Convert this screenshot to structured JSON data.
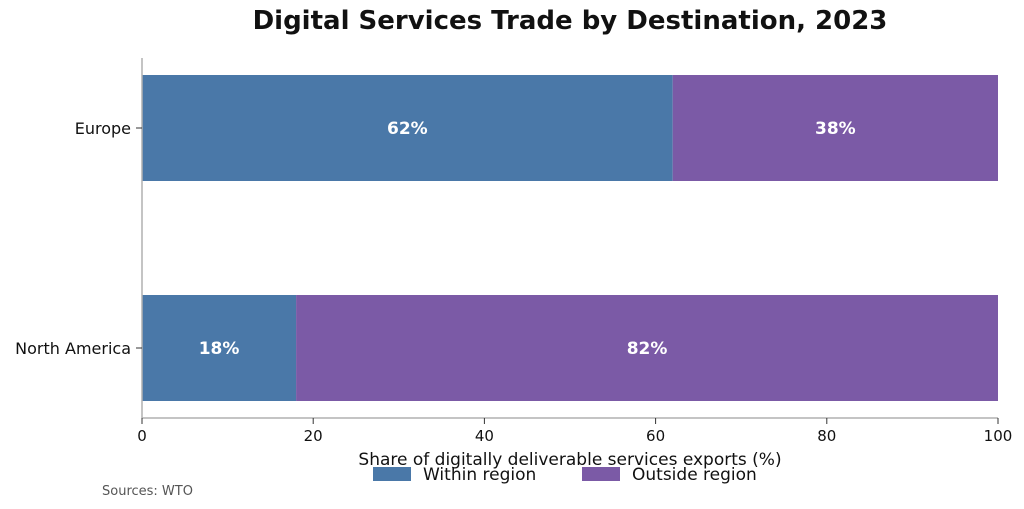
{
  "chart_data": {
    "type": "bar",
    "orientation": "horizontal",
    "stacked": true,
    "title": "Digital Services Trade by Destination, 2023",
    "xlabel": "Share of digitally deliverable services exports (%)",
    "ylabel": "",
    "categories": [
      "Europe",
      "North America"
    ],
    "series": [
      {
        "name": "Within region",
        "values": [
          62,
          18
        ],
        "labels": [
          "62%",
          "18%"
        ],
        "color": "#4a78a8"
      },
      {
        "name": "Outside region",
        "values": [
          38,
          82
        ],
        "labels": [
          "38%",
          "82%"
        ],
        "color": "#7b5aa6"
      }
    ],
    "xlim": [
      0,
      100
    ],
    "xticks": [
      0,
      20,
      40,
      60,
      80,
      100
    ],
    "grid": false,
    "legend_position": "bottom-center"
  },
  "source": "Sources: WTO"
}
